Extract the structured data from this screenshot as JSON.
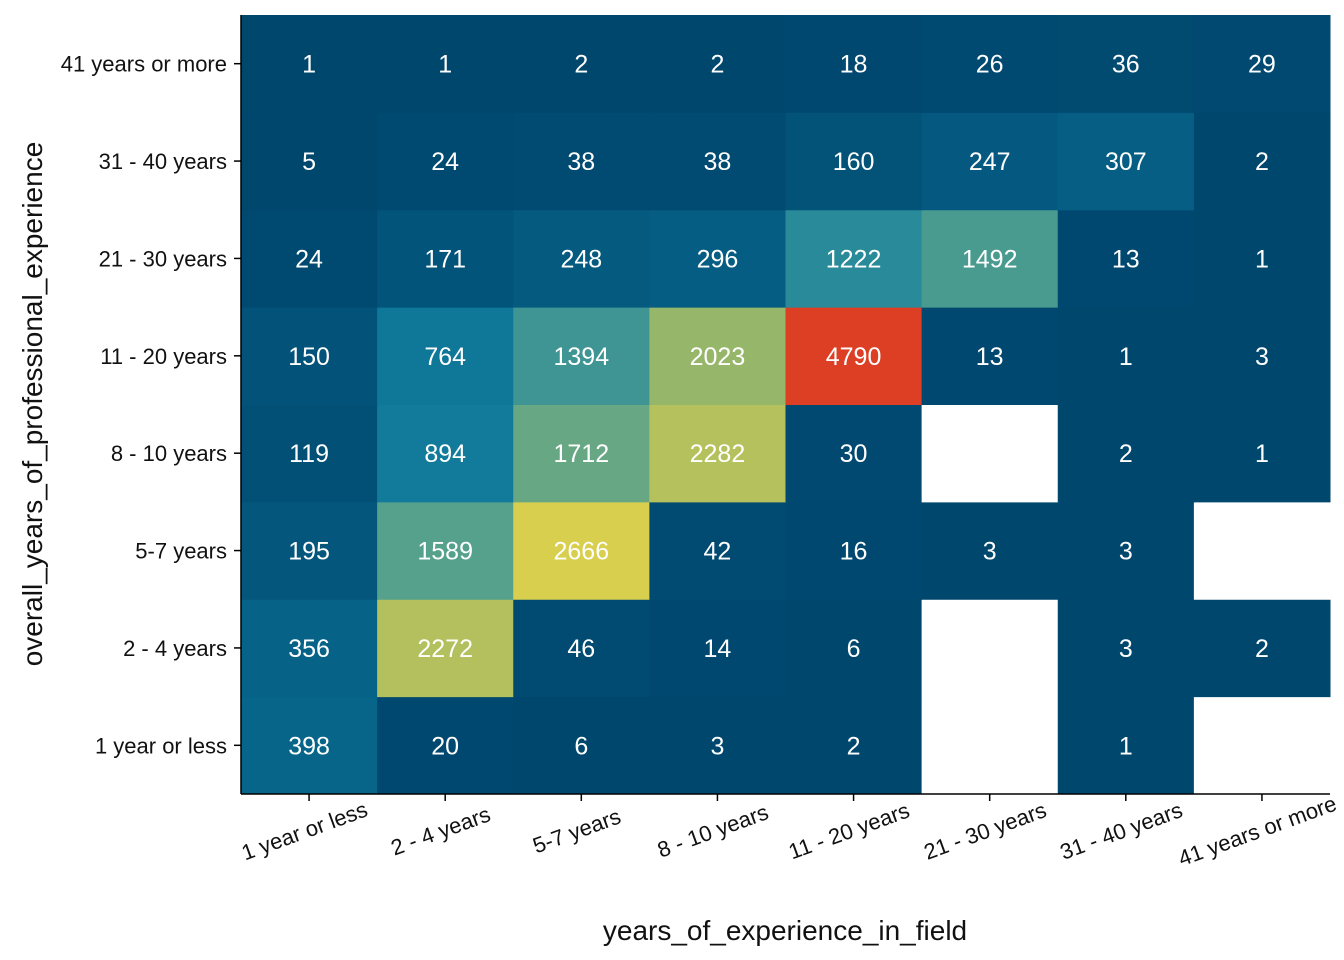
{
  "chart_data": {
    "type": "heatmap",
    "xlabel": "years_of_experience_in_field",
    "ylabel": "overall_years_of_professional_experience",
    "x_categories": [
      "1 year or less",
      "2 - 4 years",
      "5-7 years",
      "8 - 10 years",
      "11 - 20 years",
      "21 - 30 years",
      "31 - 40 years",
      "41 years or more"
    ],
    "y_categories": [
      "1 year or less",
      "2 - 4 years",
      "5-7 years",
      "8 - 10 years",
      "11 - 20 years",
      "21 - 30 years",
      "31 - 40 years",
      "41 years or more"
    ],
    "values": [
      [
        398,
        20,
        6,
        3,
        2,
        null,
        1,
        null
      ],
      [
        356,
        2272,
        46,
        14,
        6,
        null,
        3,
        2
      ],
      [
        195,
        1589,
        2666,
        42,
        16,
        3,
        3,
        null
      ],
      [
        119,
        894,
        1712,
        2282,
        30,
        null,
        2,
        1
      ],
      [
        150,
        764,
        1394,
        2023,
        4790,
        13,
        1,
        3
      ],
      [
        24,
        171,
        248,
        296,
        1222,
        1492,
        13,
        1
      ],
      [
        5,
        24,
        38,
        38,
        160,
        247,
        307,
        2
      ],
      [
        1,
        1,
        2,
        2,
        18,
        26,
        36,
        29
      ]
    ],
    "value_range": [
      1,
      4790
    ],
    "color_scale": {
      "palette": "zissou",
      "stops": [
        "#00476e",
        "#0a6f94",
        "#16819e",
        "#56a28c",
        "#a6bb62",
        "#d8cf4e",
        "#ecc337",
        "#e9a524",
        "#e27318",
        "#dd3f24"
      ],
      "missing": "#ffffff"
    },
    "label_color": "#ffffff",
    "legend": "none"
  }
}
